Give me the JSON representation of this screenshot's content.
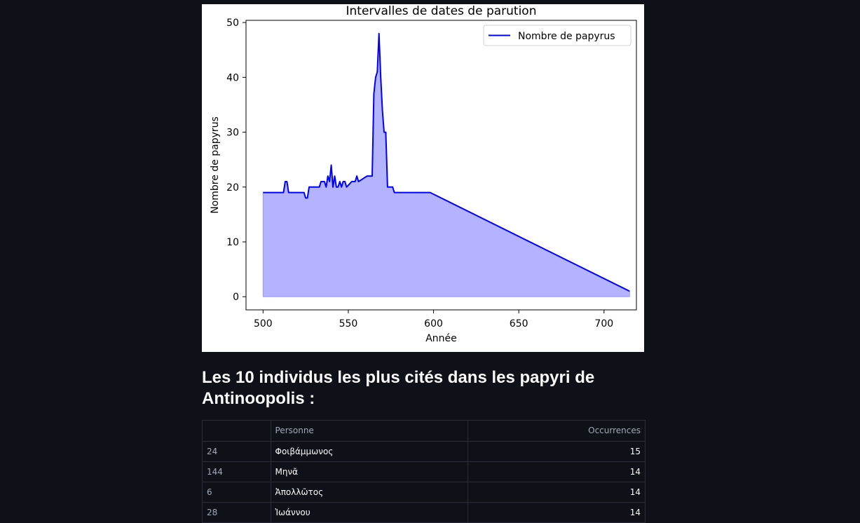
{
  "chart_data": {
    "type": "area",
    "title": "Intervalles de dates de parution",
    "xlabel": "Année",
    "ylabel": "Nombre de papyrus",
    "xlim": [
      490,
      719
    ],
    "ylim": [
      -2.4,
      50.4
    ],
    "xticks": [
      500,
      550,
      600,
      650,
      700
    ],
    "yticks": [
      0,
      10,
      20,
      30,
      40,
      50
    ],
    "legend": "top-right",
    "series": [
      {
        "name": "Nombre de papyrus",
        "color": "#0000ff",
        "fill": "#b3b3ff",
        "x": [
          500,
          512,
          513,
          514,
          515,
          524,
          525,
          526,
          527,
          533,
          534,
          536,
          537,
          538,
          539,
          540,
          541,
          542,
          543,
          544,
          545,
          546,
          547,
          548,
          549,
          552,
          553,
          554,
          555,
          556,
          561,
          562,
          564,
          565,
          566,
          567,
          568,
          569,
          570,
          571,
          572,
          573,
          576,
          577,
          578,
          598,
          715
        ],
        "y": [
          19,
          19,
          21,
          21,
          19,
          19,
          18,
          18,
          20,
          20,
          21,
          21,
          20,
          22,
          21,
          24,
          20,
          22,
          20,
          20,
          21,
          20,
          21,
          21,
          20,
          21,
          21,
          21,
          22,
          21,
          22,
          22,
          22,
          37,
          40,
          41,
          48,
          40,
          34,
          30,
          30,
          20,
          20,
          19,
          19,
          19,
          1
        ]
      }
    ]
  },
  "section": {
    "title": "Les 10 individus les plus cités dans les papyri de Antinoopolis :"
  },
  "table": {
    "columns": [
      "",
      "Personne",
      "Occurrences"
    ],
    "rows": [
      {
        "index": "24",
        "person": "Φοιβάμμωνος",
        "count": "15"
      },
      {
        "index": "144",
        "person": "Μηνᾶ",
        "count": "14"
      },
      {
        "index": "6",
        "person": "Ἀπολλῶτος",
        "count": "14"
      },
      {
        "index": "28",
        "person": "Ἰωάννου",
        "count": "14"
      }
    ]
  }
}
